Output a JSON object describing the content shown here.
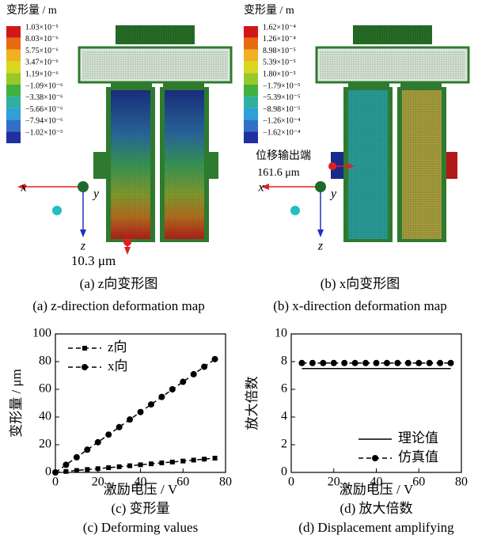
{
  "figures": [
    {
      "colorbar_title": "变形量 / m",
      "colorbar_labels": [
        "1.03×10⁻⁵",
        "8.03×10⁻⁶",
        "5.75×10⁻⁶",
        "3.47×10⁻⁶",
        "1.19×10⁻⁶",
        "−1.09×10⁻⁶",
        "−3.38×10⁻⁶",
        "−5.66×10⁻⁶",
        "−7.94×10⁻⁶",
        "−1.02×10⁻⁵"
      ],
      "axis_labels": [
        "x",
        "y",
        "z"
      ],
      "annotations": [
        "10.3 μm"
      ],
      "caption_cn": "(a)  z向变形图",
      "caption_en": "(a)  z-direction deformation map"
    },
    {
      "colorbar_title": "变形量 / m",
      "colorbar_labels": [
        "1.62×10⁻⁴",
        "1.26×10⁻⁴",
        "8.98×10⁻⁵",
        "5.39×10⁻⁵",
        "1.80×10⁻⁵",
        "−1.79×10⁻⁵",
        "−5.39×10⁻⁵",
        "−8.98×10⁻⁵",
        "−1.26×10⁻⁴",
        "−1.62×10⁻⁴"
      ],
      "axis_labels": [
        "x",
        "y",
        "z"
      ],
      "annotations": [
        "位移输出端",
        "161.6 μm"
      ],
      "caption_cn": "(b)  x向变形图",
      "caption_en": "(b)  x-direction deformation map"
    }
  ],
  "chart_data": [
    {
      "type": "line",
      "caption_cn": "(c)  变形量",
      "caption_en": "(c)  Deforming values",
      "xlabel": "激励电压 / V",
      "ylabel": "变形量 / μm",
      "xlim": [
        0,
        80
      ],
      "xticks": [
        0,
        20,
        40,
        60,
        80
      ],
      "ylim": [
        0,
        100
      ],
      "yticks": [
        0,
        20,
        40,
        60,
        80,
        100
      ],
      "legend": "upper left",
      "series": [
        {
          "name": "z向",
          "color": "#000000",
          "marker": "square",
          "dashed": true,
          "x": [
            0,
            5,
            10,
            15,
            20,
            25,
            30,
            35,
            40,
            45,
            50,
            55,
            60,
            65,
            70,
            75
          ],
          "values": [
            0,
            0.7,
            1.4,
            2.1,
            2.7,
            3.4,
            4.1,
            4.8,
            5.5,
            6.2,
            6.9,
            7.5,
            8.2,
            8.9,
            9.6,
            10.3
          ]
        },
        {
          "name": "x向",
          "color": "#000000",
          "marker": "circle",
          "dashed": true,
          "x": [
            0,
            5,
            10,
            15,
            20,
            25,
            30,
            35,
            40,
            45,
            50,
            55,
            60,
            65,
            70,
            75
          ],
          "values": [
            0,
            5.5,
            10.9,
            16.4,
            21.8,
            27.3,
            32.7,
            38.2,
            43.6,
            49.1,
            54.5,
            60,
            65.4,
            70.9,
            76.3,
            81.8
          ]
        }
      ]
    },
    {
      "type": "line",
      "caption_cn": "(d)  放大倍数",
      "caption_en": "(d)  Displacement amplifying",
      "xlabel": "激励电压 / V",
      "ylabel": "放大倍数",
      "xlim": [
        0,
        80
      ],
      "xticks": [
        0,
        20,
        40,
        60,
        80
      ],
      "ylim": [
        0,
        10
      ],
      "yticks": [
        0,
        2,
        4,
        6,
        8,
        10
      ],
      "legend": "lower right",
      "series": [
        {
          "name": "理论值",
          "color": "#000000",
          "dashed": false,
          "x": [
            5,
            75
          ],
          "values": [
            7.5,
            7.5
          ]
        },
        {
          "name": "仿真值",
          "color": "#000000",
          "marker": "circle",
          "dashed": true,
          "x": [
            5,
            10,
            15,
            20,
            25,
            30,
            35,
            40,
            45,
            50,
            55,
            60,
            65,
            70,
            75
          ],
          "values": [
            7.9,
            7.9,
            7.9,
            7.9,
            7.9,
            7.9,
            7.9,
            7.9,
            7.9,
            7.9,
            7.9,
            7.9,
            7.9,
            7.9,
            7.9
          ]
        }
      ]
    }
  ]
}
